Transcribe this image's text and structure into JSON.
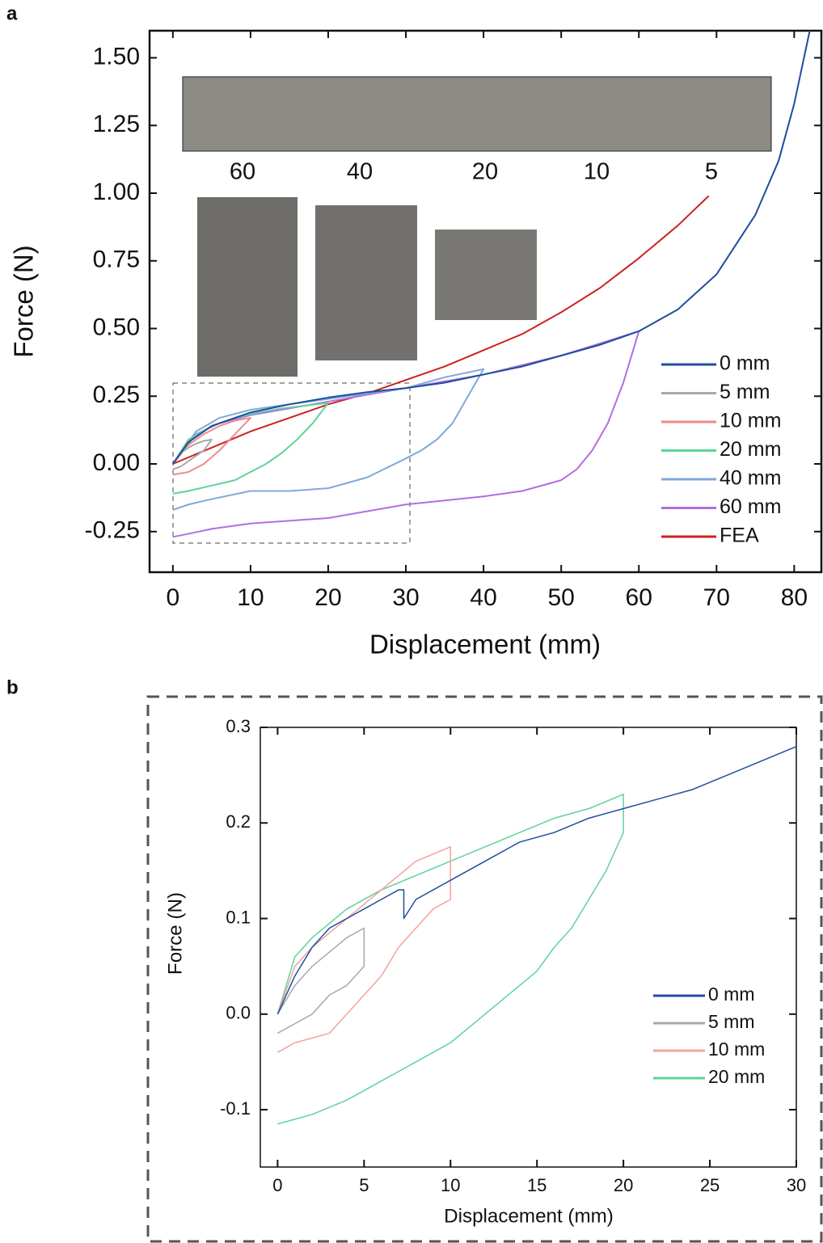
{
  "chart_data": [
    {
      "type": "line",
      "panel_label": "a",
      "x_label": "Displacement (mm)",
      "y_label": "Force (N)",
      "xlim": [
        -3,
        83.5
      ],
      "ylim": [
        -0.4,
        1.6
      ],
      "xticks": [
        0,
        10,
        20,
        30,
        40,
        50,
        60,
        70,
        80
      ],
      "yticks": [
        {
          "value": 1.5,
          "label": "1.50"
        },
        1.25,
        {
          "value": 1.0,
          "label": "1.00"
        },
        0.75,
        {
          "value": 0.5,
          "label": "0.50"
        },
        0.25,
        {
          "value": 0,
          "label": "0.00"
        },
        -0.25
      ],
      "annotations": [
        "60",
        "40",
        "20",
        "10",
        "5"
      ],
      "series": [
        {
          "name": "0 mm",
          "color": "#1f4e9c",
          "x": [
            0,
            2,
            5,
            10,
            15,
            20,
            25,
            30,
            35,
            40,
            45,
            50,
            55,
            60,
            65,
            70,
            75,
            78,
            80,
            82
          ],
          "values": [
            0,
            0.08,
            0.14,
            0.19,
            0.22,
            0.245,
            0.265,
            0.28,
            0.3,
            0.33,
            0.36,
            0.4,
            0.44,
            0.49,
            0.57,
            0.7,
            0.92,
            1.12,
            1.33,
            1.6
          ]
        },
        {
          "name": "5 mm",
          "color": "#a8a8a8",
          "x": [
            0,
            1,
            2,
            3,
            4,
            5,
            4,
            3,
            2,
            1,
            0
          ],
          "values": [
            0,
            0.04,
            0.06,
            0.075,
            0.085,
            0.09,
            0.05,
            0.03,
            0.01,
            -0.01,
            -0.02
          ]
        },
        {
          "name": "10 mm",
          "color": "#f08a8a",
          "x": [
            0,
            2,
            4,
            6,
            8,
            10,
            8,
            6,
            4,
            2,
            0
          ],
          "values": [
            0,
            0.07,
            0.11,
            0.14,
            0.16,
            0.17,
            0.11,
            0.05,
            0,
            -0.03,
            -0.04
          ]
        },
        {
          "name": "20 mm",
          "color": "#5fd39a",
          "x": [
            0,
            2,
            5,
            8,
            11,
            14,
            17,
            20,
            18,
            16,
            14,
            12,
            10,
            8,
            5,
            2,
            0
          ],
          "values": [
            0,
            0.09,
            0.14,
            0.17,
            0.19,
            0.205,
            0.215,
            0.225,
            0.15,
            0.09,
            0.04,
            0,
            -0.03,
            -0.06,
            -0.08,
            -0.1,
            -0.11
          ]
        },
        {
          "name": "40 mm",
          "color": "#7fa9d8",
          "x": [
            0,
            3,
            6,
            10,
            15,
            20,
            25,
            30,
            35,
            40,
            38,
            36,
            34,
            32,
            30,
            25,
            20,
            15,
            10,
            5,
            2,
            0
          ],
          "values": [
            0,
            0.12,
            0.17,
            0.2,
            0.22,
            0.24,
            0.26,
            0.28,
            0.32,
            0.35,
            0.25,
            0.15,
            0.09,
            0.05,
            0.02,
            -0.05,
            -0.09,
            -0.1,
            -0.1,
            -0.13,
            -0.15,
            -0.17
          ]
        },
        {
          "name": "60 mm",
          "color": "#b36ee0",
          "x": [
            0,
            3,
            6,
            10,
            20,
            30,
            40,
            50,
            60,
            58,
            56,
            54,
            52,
            50,
            45,
            40,
            30,
            20,
            10,
            5,
            0
          ],
          "values": [
            0,
            0.11,
            0.15,
            0.18,
            0.23,
            0.28,
            0.33,
            0.4,
            0.49,
            0.3,
            0.15,
            0.05,
            -0.02,
            -0.06,
            -0.1,
            -0.12,
            -0.15,
            -0.2,
            -0.22,
            -0.24,
            -0.27
          ]
        },
        {
          "name": "FEA",
          "color": "#cc2222",
          "x": [
            0,
            5,
            10,
            15,
            20,
            25,
            30,
            35,
            40,
            45,
            50,
            55,
            60,
            65,
            69
          ],
          "values": [
            0,
            0.06,
            0.12,
            0.17,
            0.22,
            0.26,
            0.31,
            0.36,
            0.42,
            0.48,
            0.56,
            0.65,
            0.76,
            0.88,
            0.99
          ]
        }
      ]
    },
    {
      "type": "line",
      "panel_label": "b",
      "x_label": "Displacement (mm)",
      "y_label": "Force (N)",
      "xlim": [
        -1,
        30
      ],
      "ylim": [
        -0.16,
        0.3
      ],
      "xticks": [
        0,
        5,
        10,
        15,
        20,
        25,
        30
      ],
      "yticks": [
        0.3,
        0.2,
        0.1,
        {
          "value": 0,
          "label": "0.0"
        },
        -0.1
      ],
      "series": [
        {
          "name": "0 mm",
          "color": "#1f4e9c",
          "x": [
            0,
            1,
            2,
            3,
            4,
            5,
            6,
            7,
            7.3,
            7.3,
            8,
            10,
            12,
            14,
            16,
            18,
            20,
            22,
            24,
            26,
            28,
            30
          ],
          "values": [
            0,
            0.04,
            0.07,
            0.09,
            0.1,
            0.11,
            0.12,
            0.13,
            0.13,
            0.1,
            0.12,
            0.14,
            0.16,
            0.18,
            0.19,
            0.205,
            0.215,
            0.225,
            0.235,
            0.25,
            0.265,
            0.28
          ]
        },
        {
          "name": "5 mm",
          "color": "#a8a8a8",
          "x": [
            0,
            1,
            2,
            3,
            4,
            5,
            5,
            4,
            3,
            2,
            1,
            0
          ],
          "values": [
            0,
            0.03,
            0.05,
            0.065,
            0.08,
            0.09,
            0.05,
            0.03,
            0.02,
            0,
            -0.01,
            -0.02
          ]
        },
        {
          "name": "10 mm",
          "color": "#f5a0a0",
          "x": [
            0,
            1,
            2,
            4,
            6,
            8,
            10,
            10,
            9,
            8,
            7,
            6,
            5,
            4,
            3,
            2,
            1,
            0
          ],
          "values": [
            0,
            0.05,
            0.07,
            0.1,
            0.13,
            0.16,
            0.175,
            0.12,
            0.11,
            0.09,
            0.07,
            0.04,
            0.02,
            0,
            -0.02,
            -0.025,
            -0.03,
            -0.04
          ]
        },
        {
          "name": "20 mm",
          "color": "#5fd39a",
          "x": [
            0,
            1,
            2,
            4,
            6,
            8,
            10,
            12,
            14,
            16,
            18,
            20,
            20,
            19,
            18,
            17,
            16,
            15,
            14,
            12,
            10,
            8,
            6,
            4,
            2,
            0
          ],
          "values": [
            0,
            0.06,
            0.08,
            0.11,
            0.13,
            0.145,
            0.16,
            0.175,
            0.19,
            0.205,
            0.215,
            0.23,
            0.19,
            0.15,
            0.12,
            0.09,
            0.07,
            0.045,
            0.03,
            0,
            -0.03,
            -0.05,
            -0.07,
            -0.09,
            -0.105,
            -0.115
          ]
        }
      ]
    }
  ]
}
